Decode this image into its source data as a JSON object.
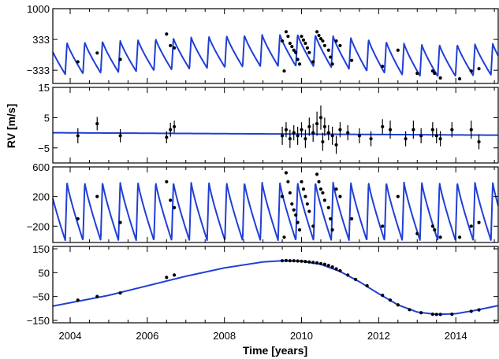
{
  "chart_data": {
    "type": "scatter",
    "ylabel": "RV [m/s]",
    "xlabel": "Time [years]",
    "xlim": [
      2003.55,
      2015.1
    ],
    "x_ticks": [
      "2004",
      "2006",
      "2008",
      "2010",
      "2012",
      "2014"
    ],
    "model_color": "#1f3fd6",
    "point_color": "#000000",
    "panels": [
      {
        "id": "total",
        "ylim": [
          -620,
          1000
        ],
        "y_ticks": [
          {
            "value": 1000,
            "label": "1000"
          },
          {
            "value": 333,
            "label": "333"
          },
          {
            "value": -333,
            "label": "−333"
          }
        ],
        "model": {
          "kind": "sum",
          "period_years": 0.46,
          "amplitude": 340,
          "phase": 0.3
        },
        "points": [
          {
            "x": 2004.2,
            "y": -150
          },
          {
            "x": 2004.7,
            "y": 40
          },
          {
            "x": 2005.3,
            "y": -100
          },
          {
            "x": 2006.5,
            "y": 450
          },
          {
            "x": 2006.6,
            "y": 200
          },
          {
            "x": 2006.7,
            "y": 150
          },
          {
            "x": 2009.5,
            "y": 300
          },
          {
            "x": 2009.55,
            "y": -350
          },
          {
            "x": 2009.6,
            "y": 500
          },
          {
            "x": 2009.65,
            "y": 400
          },
          {
            "x": 2009.7,
            "y": 250
          },
          {
            "x": 2009.75,
            "y": 180
          },
          {
            "x": 2009.8,
            "y": 100
          },
          {
            "x": 2009.85,
            "y": 50
          },
          {
            "x": 2009.9,
            "y": -100
          },
          {
            "x": 2009.95,
            "y": -200
          },
          {
            "x": 2010.0,
            "y": 400
          },
          {
            "x": 2010.05,
            "y": 320
          },
          {
            "x": 2010.1,
            "y": 250
          },
          {
            "x": 2010.15,
            "y": 150
          },
          {
            "x": 2010.2,
            "y": 50
          },
          {
            "x": 2010.3,
            "y": -150
          },
          {
            "x": 2010.4,
            "y": 500
          },
          {
            "x": 2010.45,
            "y": 420
          },
          {
            "x": 2010.5,
            "y": 350
          },
          {
            "x": 2010.55,
            "y": 300
          },
          {
            "x": 2010.6,
            "y": 200
          },
          {
            "x": 2010.7,
            "y": 100
          },
          {
            "x": 2010.75,
            "y": -50
          },
          {
            "x": 2010.8,
            "y": -200
          },
          {
            "x": 2010.9,
            "y": 300
          },
          {
            "x": 2011.0,
            "y": 200
          },
          {
            "x": 2011.3,
            "y": -120
          },
          {
            "x": 2012.1,
            "y": -250
          },
          {
            "x": 2012.5,
            "y": 100
          },
          {
            "x": 2013.0,
            "y": -400
          },
          {
            "x": 2013.4,
            "y": -350
          },
          {
            "x": 2013.45,
            "y": -400
          },
          {
            "x": 2013.6,
            "y": -500
          },
          {
            "x": 2014.1,
            "y": -520
          },
          {
            "x": 2014.4,
            "y": -350
          },
          {
            "x": 2014.6,
            "y": -300
          }
        ]
      },
      {
        "id": "residual",
        "ylim": [
          -10,
          15
        ],
        "y_ticks": [
          {
            "value": 15,
            "label": "15"
          },
          {
            "value": 5,
            "label": "5"
          },
          {
            "value": -5,
            "label": "−5"
          }
        ],
        "model": {
          "kind": "linear",
          "start": 0.0,
          "end": -0.8
        },
        "points": [
          {
            "x": 2004.2,
            "y": -1,
            "err": 2.5
          },
          {
            "x": 2004.7,
            "y": 3,
            "err": 2.2
          },
          {
            "x": 2005.3,
            "y": -1,
            "err": 2.2
          },
          {
            "x": 2006.5,
            "y": -1.5,
            "err": 2
          },
          {
            "x": 2006.6,
            "y": 1,
            "err": 2.3
          },
          {
            "x": 2006.7,
            "y": 2,
            "err": 2
          },
          {
            "x": 2009.5,
            "y": -1,
            "err": 3
          },
          {
            "x": 2009.6,
            "y": 1,
            "err": 2.5
          },
          {
            "x": 2009.7,
            "y": -2,
            "err": 3
          },
          {
            "x": 2009.8,
            "y": 0,
            "err": 2.5
          },
          {
            "x": 2009.9,
            "y": -1,
            "err": 3
          },
          {
            "x": 2010.0,
            "y": 1,
            "err": 2.5
          },
          {
            "x": 2010.1,
            "y": -2,
            "err": 3
          },
          {
            "x": 2010.2,
            "y": 2,
            "err": 3
          },
          {
            "x": 2010.3,
            "y": 0,
            "err": 3
          },
          {
            "x": 2010.4,
            "y": 3,
            "err": 4
          },
          {
            "x": 2010.5,
            "y": 5,
            "err": 4
          },
          {
            "x": 2010.55,
            "y": -3,
            "err": 3
          },
          {
            "x": 2010.6,
            "y": 2,
            "err": 3
          },
          {
            "x": 2010.7,
            "y": 0,
            "err": 2.5
          },
          {
            "x": 2010.8,
            "y": -1,
            "err": 3
          },
          {
            "x": 2010.9,
            "y": -4,
            "err": 3
          },
          {
            "x": 2011.0,
            "y": 1,
            "err": 2.5
          },
          {
            "x": 2011.2,
            "y": 0,
            "err": 2.5
          },
          {
            "x": 2011.5,
            "y": -1,
            "err": 2.5
          },
          {
            "x": 2011.8,
            "y": -2,
            "err": 2.5
          },
          {
            "x": 2012.1,
            "y": 2,
            "err": 2.5
          },
          {
            "x": 2012.3,
            "y": 1,
            "err": 3
          },
          {
            "x": 2012.7,
            "y": -2,
            "err": 2.5
          },
          {
            "x": 2012.9,
            "y": 1,
            "err": 3
          },
          {
            "x": 2013.1,
            "y": -1,
            "err": 2.5
          },
          {
            "x": 2013.4,
            "y": 1,
            "err": 2.5
          },
          {
            "x": 2013.5,
            "y": -1,
            "err": 2.5
          },
          {
            "x": 2013.6,
            "y": -2,
            "err": 2.5
          },
          {
            "x": 2013.9,
            "y": 1,
            "err": 2.5
          },
          {
            "x": 2014.4,
            "y": 1,
            "err": 3
          },
          {
            "x": 2014.6,
            "y": -3,
            "err": 2.5
          }
        ]
      },
      {
        "id": "short-period",
        "ylim": [
          -420,
          600
        ],
        "y_ticks": [
          {
            "value": 600,
            "label": "600"
          },
          {
            "value": 200,
            "label": "200"
          },
          {
            "value": -200,
            "label": "−200"
          }
        ],
        "model": {
          "kind": "sawtooth",
          "period_years": 0.46,
          "amplitude": 390,
          "phase": 0.3
        },
        "points": [
          {
            "x": 2004.2,
            "y": -100
          },
          {
            "x": 2004.7,
            "y": 200
          },
          {
            "x": 2005.3,
            "y": -150
          },
          {
            "x": 2006.5,
            "y": 400
          },
          {
            "x": 2006.6,
            "y": 150
          },
          {
            "x": 2006.7,
            "y": 50
          },
          {
            "x": 2009.5,
            "y": 200
          },
          {
            "x": 2009.55,
            "y": -350
          },
          {
            "x": 2009.6,
            "y": 520
          },
          {
            "x": 2009.65,
            "y": 400
          },
          {
            "x": 2009.7,
            "y": 250
          },
          {
            "x": 2009.75,
            "y": 100
          },
          {
            "x": 2009.8,
            "y": 20
          },
          {
            "x": 2009.85,
            "y": -50
          },
          {
            "x": 2009.9,
            "y": -150
          },
          {
            "x": 2009.95,
            "y": -250
          },
          {
            "x": 2010.0,
            "y": 400
          },
          {
            "x": 2010.05,
            "y": 300
          },
          {
            "x": 2010.1,
            "y": 200
          },
          {
            "x": 2010.15,
            "y": 100
          },
          {
            "x": 2010.2,
            "y": 0
          },
          {
            "x": 2010.3,
            "y": -200
          },
          {
            "x": 2010.4,
            "y": 500
          },
          {
            "x": 2010.45,
            "y": 400
          },
          {
            "x": 2010.5,
            "y": 300
          },
          {
            "x": 2010.55,
            "y": 250
          },
          {
            "x": 2010.6,
            "y": 150
          },
          {
            "x": 2010.7,
            "y": 50
          },
          {
            "x": 2010.75,
            "y": -100
          },
          {
            "x": 2010.8,
            "y": -250
          },
          {
            "x": 2010.9,
            "y": 300
          },
          {
            "x": 2011.0,
            "y": 200
          },
          {
            "x": 2011.3,
            "y": -100
          },
          {
            "x": 2012.1,
            "y": -200
          },
          {
            "x": 2012.5,
            "y": 200
          },
          {
            "x": 2013.0,
            "y": -300
          },
          {
            "x": 2013.4,
            "y": -200
          },
          {
            "x": 2013.45,
            "y": -250
          },
          {
            "x": 2013.6,
            "y": -350
          },
          {
            "x": 2014.1,
            "y": -350
          },
          {
            "x": 2014.4,
            "y": -200
          },
          {
            "x": 2014.6,
            "y": -150
          }
        ]
      },
      {
        "id": "long-period",
        "ylim": [
          -160,
          160
        ],
        "y_ticks": [
          {
            "value": 150,
            "label": "150"
          },
          {
            "value": 50,
            "label": "50"
          },
          {
            "value": -50,
            "label": "−50"
          },
          {
            "value": -150,
            "label": "−150"
          }
        ],
        "model": {
          "kind": "curve",
          "x": [
            2003.55,
            2005.0,
            2006.0,
            2007.0,
            2008.0,
            2009.0,
            2009.5,
            2010.0,
            2010.5,
            2011.0,
            2011.5,
            2012.0,
            2012.5,
            2013.0,
            2013.5,
            2014.0,
            2014.5,
            2015.1
          ],
          "y": [
            -90,
            -45,
            -5,
            35,
            70,
            95,
            100,
            98,
            85,
            55,
            12,
            -38,
            -85,
            -115,
            -125,
            -122,
            -108,
            -88
          ]
        },
        "points": [
          {
            "x": 2004.2,
            "y": -65
          },
          {
            "x": 2004.7,
            "y": -50
          },
          {
            "x": 2005.3,
            "y": -35
          },
          {
            "x": 2006.5,
            "y": 30
          },
          {
            "x": 2006.7,
            "y": 40
          },
          {
            "x": 2009.5,
            "y": 100
          },
          {
            "x": 2009.6,
            "y": 101
          },
          {
            "x": 2009.7,
            "y": 100
          },
          {
            "x": 2009.8,
            "y": 100
          },
          {
            "x": 2009.9,
            "y": 99
          },
          {
            "x": 2010.0,
            "y": 98
          },
          {
            "x": 2010.1,
            "y": 97
          },
          {
            "x": 2010.2,
            "y": 95
          },
          {
            "x": 2010.3,
            "y": 93
          },
          {
            "x": 2010.4,
            "y": 91
          },
          {
            "x": 2010.5,
            "y": 88
          },
          {
            "x": 2010.6,
            "y": 85
          },
          {
            "x": 2010.7,
            "y": 80
          },
          {
            "x": 2010.8,
            "y": 74
          },
          {
            "x": 2010.9,
            "y": 66
          },
          {
            "x": 2011.0,
            "y": 58
          },
          {
            "x": 2011.2,
            "y": 40
          },
          {
            "x": 2011.4,
            "y": 22
          },
          {
            "x": 2011.7,
            "y": -5
          },
          {
            "x": 2012.1,
            "y": -45
          },
          {
            "x": 2012.3,
            "y": -65
          },
          {
            "x": 2012.5,
            "y": -85
          },
          {
            "x": 2012.8,
            "y": -105
          },
          {
            "x": 2013.1,
            "y": -118
          },
          {
            "x": 2013.4,
            "y": -124
          },
          {
            "x": 2013.5,
            "y": -125
          },
          {
            "x": 2013.6,
            "y": -125
          },
          {
            "x": 2013.9,
            "y": -124
          },
          {
            "x": 2014.4,
            "y": -112
          },
          {
            "x": 2014.6,
            "y": -106
          }
        ]
      }
    ]
  }
}
